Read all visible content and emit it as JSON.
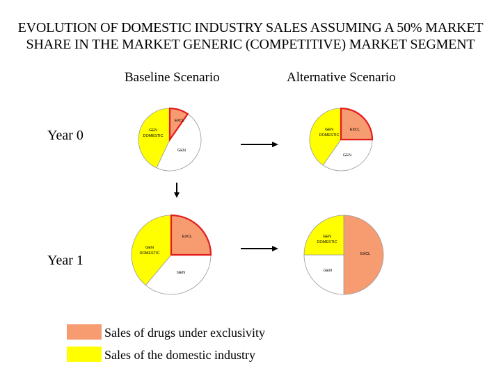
{
  "title": {
    "line1": "EVOLUTION OF DOMESTIC INDUSTRY SALES ASSUMING A 50% MARKET",
    "line2": "SHARE IN THE MARKET GENERIC (COMPETITIVE) MARKET SEGMENT"
  },
  "columns": {
    "baseline": "Baseline Scenario",
    "alternative": "Alternative Scenario"
  },
  "rows": {
    "year0": "Year 0",
    "year1": "Year 1"
  },
  "colors": {
    "exclusivity": "#f79b71",
    "domestic": "#ffff00",
    "outline": "#e31b1b",
    "other": "#ffffff"
  },
  "pies": [
    {
      "id": "baseline-year0",
      "slices": [
        {
          "label": "EXCL",
          "type": "exclusivity",
          "start": 0,
          "end": 35,
          "highlight": true
        },
        {
          "label": "GEN",
          "type": "other",
          "start": 35,
          "end": 205
        },
        {
          "label": "GEN DOMESTIC",
          "type": "domestic",
          "start": 205,
          "end": 360
        }
      ]
    },
    {
      "id": "alternative-year0",
      "slices": [
        {
          "label": "EXCL",
          "type": "exclusivity",
          "start": 0,
          "end": 90,
          "highlight": true
        },
        {
          "label": "GEN",
          "type": "other",
          "start": 90,
          "end": 215
        },
        {
          "label": "GEN DOMESTIC",
          "type": "domestic",
          "start": 215,
          "end": 360
        }
      ]
    },
    {
      "id": "baseline-year1",
      "slices": [
        {
          "label": "EXCL",
          "type": "exclusivity",
          "start": 0,
          "end": 90,
          "highlight": true
        },
        {
          "label": "GEN",
          "type": "other",
          "start": 90,
          "end": 220
        },
        {
          "label": "GEN DOMESTIC",
          "type": "domestic",
          "start": 220,
          "end": 360
        }
      ]
    },
    {
      "id": "alternative-year1",
      "slices": [
        {
          "label": "EXCL",
          "type": "exclusivity",
          "start": 0,
          "end": 180
        },
        {
          "label": "GEN",
          "type": "other",
          "start": 180,
          "end": 270
        },
        {
          "label": "GEN DOMESTIC",
          "type": "domestic",
          "start": 270,
          "end": 360
        }
      ]
    }
  ],
  "legend": [
    {
      "type": "exclusivity",
      "label": "Sales of drugs under exclusivity"
    },
    {
      "type": "domestic",
      "label": "Sales of the domestic industry"
    }
  ]
}
